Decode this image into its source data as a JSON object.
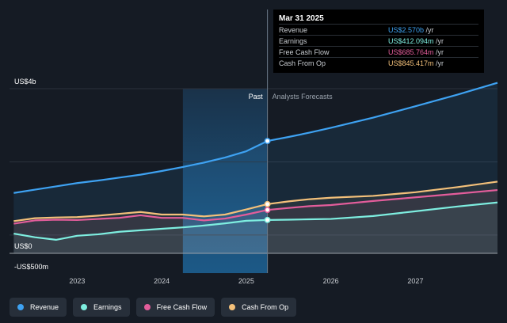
{
  "chart_data": {
    "type": "area",
    "y_unit_labels": [
      "US$4b",
      "US$0",
      "-US$500m"
    ],
    "ylim": [
      -500,
      4000
    ],
    "xlim": [
      2022.2,
      2027.97
    ],
    "x_ticks": [
      "2023",
      "2024",
      "2025",
      "2026",
      "2027"
    ],
    "past_label": "Past",
    "forecast_label": "Analysts Forecasts",
    "divider_x": 2025.25,
    "highlight_start_x": 2024.25,
    "series": [
      {
        "name": "Revenue",
        "color": "#3ea2f2",
        "points": [
          [
            2022.25,
            1150
          ],
          [
            2022.5,
            1240
          ],
          [
            2022.75,
            1330
          ],
          [
            2023.0,
            1420
          ],
          [
            2023.25,
            1490
          ],
          [
            2023.5,
            1570
          ],
          [
            2023.75,
            1650
          ],
          [
            2024.0,
            1750
          ],
          [
            2024.25,
            1860
          ],
          [
            2024.5,
            1980
          ],
          [
            2024.75,
            2120
          ],
          [
            2025.0,
            2290
          ],
          [
            2025.25,
            2570
          ],
          [
            2025.5,
            2680
          ],
          [
            2025.75,
            2800
          ],
          [
            2026.0,
            2930
          ],
          [
            2026.5,
            3210
          ],
          [
            2027.0,
            3520
          ],
          [
            2027.5,
            3840
          ],
          [
            2027.97,
            4160
          ]
        ]
      },
      {
        "name": "Earnings",
        "color": "#7eeee0",
        "points": [
          [
            2022.25,
            40
          ],
          [
            2022.5,
            -60
          ],
          [
            2022.75,
            -130
          ],
          [
            2023.0,
            -20
          ],
          [
            2023.25,
            20
          ],
          [
            2023.5,
            90
          ],
          [
            2023.75,
            130
          ],
          [
            2024.0,
            170
          ],
          [
            2024.25,
            210
          ],
          [
            2024.5,
            260
          ],
          [
            2024.75,
            320
          ],
          [
            2025.0,
            390
          ],
          [
            2025.25,
            412
          ],
          [
            2025.5,
            420
          ],
          [
            2025.75,
            430
          ],
          [
            2026.0,
            440
          ],
          [
            2026.5,
            520
          ],
          [
            2027.0,
            650
          ],
          [
            2027.5,
            780
          ],
          [
            2027.97,
            890
          ]
        ]
      },
      {
        "name": "Free Cash Flow",
        "color": "#e35d9b",
        "points": [
          [
            2022.25,
            310
          ],
          [
            2022.5,
            400
          ],
          [
            2022.75,
            420
          ],
          [
            2023.0,
            410
          ],
          [
            2023.25,
            440
          ],
          [
            2023.5,
            470
          ],
          [
            2023.75,
            540
          ],
          [
            2024.0,
            470
          ],
          [
            2024.25,
            470
          ],
          [
            2024.5,
            400
          ],
          [
            2024.75,
            450
          ],
          [
            2025.0,
            560
          ],
          [
            2025.25,
            686
          ],
          [
            2025.5,
            740
          ],
          [
            2025.75,
            790
          ],
          [
            2026.0,
            820
          ],
          [
            2026.5,
            930
          ],
          [
            2027.0,
            1030
          ],
          [
            2027.5,
            1130
          ],
          [
            2027.97,
            1230
          ]
        ]
      },
      {
        "name": "Cash From Op",
        "color": "#f3c07a",
        "points": [
          [
            2022.25,
            380
          ],
          [
            2022.5,
            460
          ],
          [
            2022.75,
            480
          ],
          [
            2023.0,
            490
          ],
          [
            2023.25,
            530
          ],
          [
            2023.5,
            580
          ],
          [
            2023.75,
            630
          ],
          [
            2024.0,
            560
          ],
          [
            2024.25,
            560
          ],
          [
            2024.5,
            510
          ],
          [
            2024.75,
            560
          ],
          [
            2025.0,
            700
          ],
          [
            2025.25,
            845
          ],
          [
            2025.5,
            920
          ],
          [
            2025.75,
            980
          ],
          [
            2026.0,
            1020
          ],
          [
            2026.5,
            1070
          ],
          [
            2027.0,
            1170
          ],
          [
            2027.5,
            1310
          ],
          [
            2027.97,
            1460
          ]
        ]
      }
    ],
    "tooltip": {
      "date": "Mar 31 2025",
      "rows": [
        {
          "label": "Revenue",
          "value": "US$2.570b",
          "unit": "/yr",
          "color": "#3ea2f2"
        },
        {
          "label": "Earnings",
          "value": "US$412.094m",
          "unit": "/yr",
          "color": "#7eeee0"
        },
        {
          "label": "Free Cash Flow",
          "value": "US$685.764m",
          "unit": "/yr",
          "color": "#e35d9b"
        },
        {
          "label": "Cash From Op",
          "value": "US$845.417m",
          "unit": "/yr",
          "color": "#f3c07a"
        }
      ]
    },
    "legend": [
      {
        "label": "Revenue",
        "color": "#3ea2f2"
      },
      {
        "label": "Earnings",
        "color": "#7eeee0"
      },
      {
        "label": "Free Cash Flow",
        "color": "#e35d9b"
      },
      {
        "label": "Cash From Op",
        "color": "#f3c07a"
      }
    ]
  }
}
